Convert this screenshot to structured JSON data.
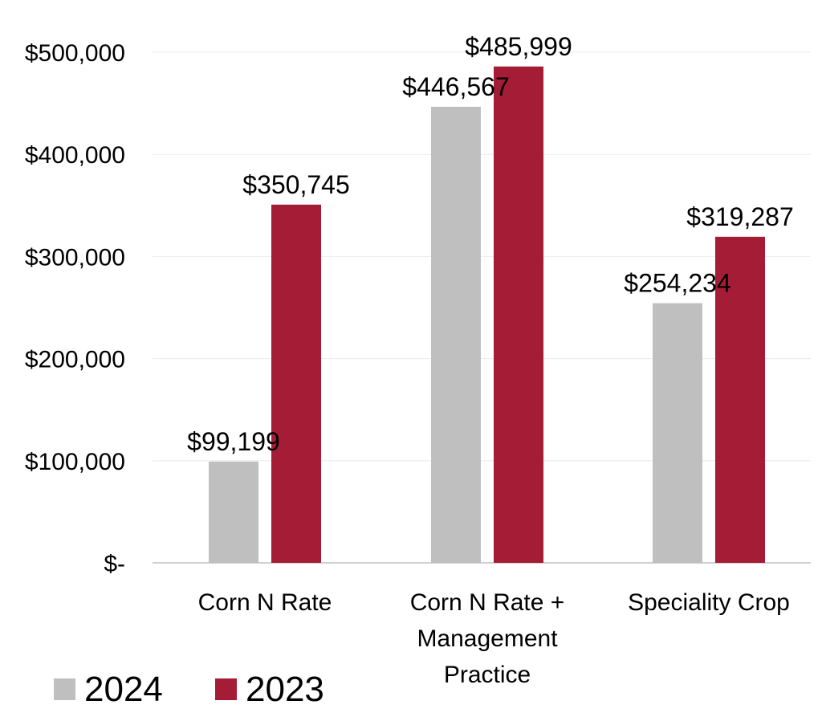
{
  "chart_data": {
    "type": "bar",
    "title": "",
    "xlabel": "",
    "ylabel": "",
    "categories": [
      [
        "Corn N Rate"
      ],
      [
        "Corn N Rate +",
        "Management",
        "Practice"
      ],
      [
        "Speciality Crop"
      ]
    ],
    "series": [
      {
        "name": "2024",
        "color": "#BFBFBF",
        "values": [
          99199,
          446567,
          254234
        ],
        "labels": [
          "$99,199",
          "$446,567",
          "$254,234"
        ]
      },
      {
        "name": "2023",
        "color": "#A51C36",
        "values": [
          350745,
          485999,
          319287
        ],
        "labels": [
          "$350,745",
          "$485,999",
          "$319,287"
        ]
      }
    ],
    "ylim": [
      0,
      500000
    ],
    "yticks": [
      {
        "value": 0,
        "label": "$-"
      },
      {
        "value": 100000,
        "label": "$100,000"
      },
      {
        "value": 200000,
        "label": "$200,000"
      },
      {
        "value": 300000,
        "label": "$300,000"
      },
      {
        "value": 400000,
        "label": "$400,000"
      },
      {
        "value": 500000,
        "label": "$500,000"
      }
    ],
    "grid": true,
    "legend_position": "bottom-left"
  }
}
